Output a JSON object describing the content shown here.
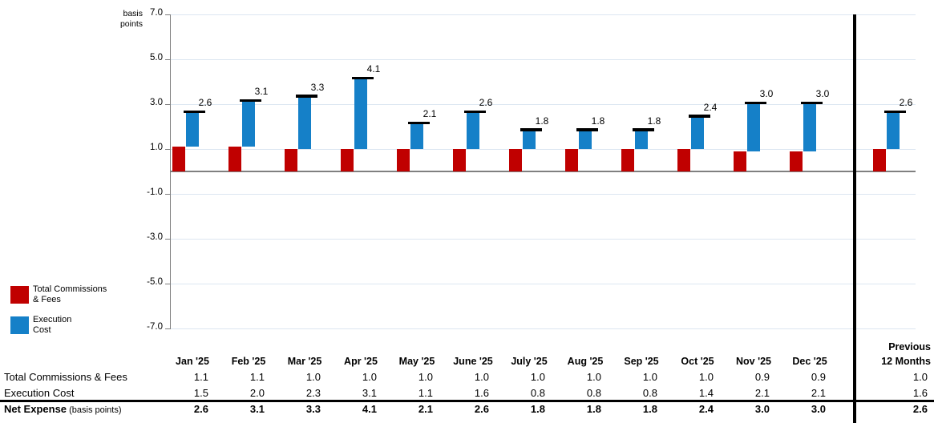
{
  "axis_title_lines": [
    "basis",
    "points"
  ],
  "y_axis": {
    "ticks": [
      7.0,
      5.0,
      3.0,
      1.0,
      -1.0,
      -3.0,
      -5.0,
      -7.0
    ],
    "min": -7.0,
    "max": 7.0
  },
  "colors": {
    "red_series": "#C00000",
    "blue_series": "#1580C8",
    "gridline": "#DCE6F1",
    "zero_line": "#808080",
    "axis_line": "#7F7F7F",
    "total_cap": "#000000",
    "divider": "#000000"
  },
  "legend": {
    "items": [
      {
        "lines": [
          "Total Commissions",
          "& Fees"
        ],
        "color": "#C00000"
      },
      {
        "lines": [
          "Execution",
          "Cost"
        ],
        "color": "#1580C8"
      }
    ]
  },
  "chart_data": {
    "type": "bar",
    "stacked": true,
    "title": "",
    "ylabel": "basis points",
    "ylim": [
      -7.0,
      7.0
    ],
    "grid": true,
    "legend_position": "bottom-left",
    "categories": [
      "Jan '25",
      "Feb '25",
      "Mar '25",
      "Apr '25",
      "May '25",
      "June '25",
      "July '25",
      "Aug '25",
      "Sep '25",
      "Oct '25",
      "Nov '25",
      "Dec '25"
    ],
    "series": [
      {
        "name": "Total Commissions & Fees",
        "color": "#C00000",
        "values": [
          1.1,
          1.1,
          1.0,
          1.0,
          1.0,
          1.0,
          1.0,
          1.0,
          1.0,
          1.0,
          0.9,
          0.9
        ]
      },
      {
        "name": "Execution Cost",
        "color": "#1580C8",
        "values": [
          1.5,
          2.0,
          2.3,
          3.1,
          1.1,
          1.6,
          0.8,
          0.8,
          0.8,
          1.4,
          2.1,
          2.1
        ]
      }
    ],
    "totals": [
      2.6,
      3.1,
      3.3,
      4.1,
      2.1,
      2.6,
      1.8,
      1.8,
      1.8,
      2.4,
      3.0,
      3.0
    ],
    "summary_column": {
      "header_lines": [
        "Previous",
        "12 Months"
      ],
      "total_commissions_fees": 1.0,
      "execution_cost": 1.6,
      "net_expense": 2.6
    }
  },
  "table": {
    "row1_label": "Total Commissions & Fees",
    "row2_label": "Execution Cost",
    "row3_label_bold": "Net Expense",
    "row3_label_small": " (basis points)"
  }
}
